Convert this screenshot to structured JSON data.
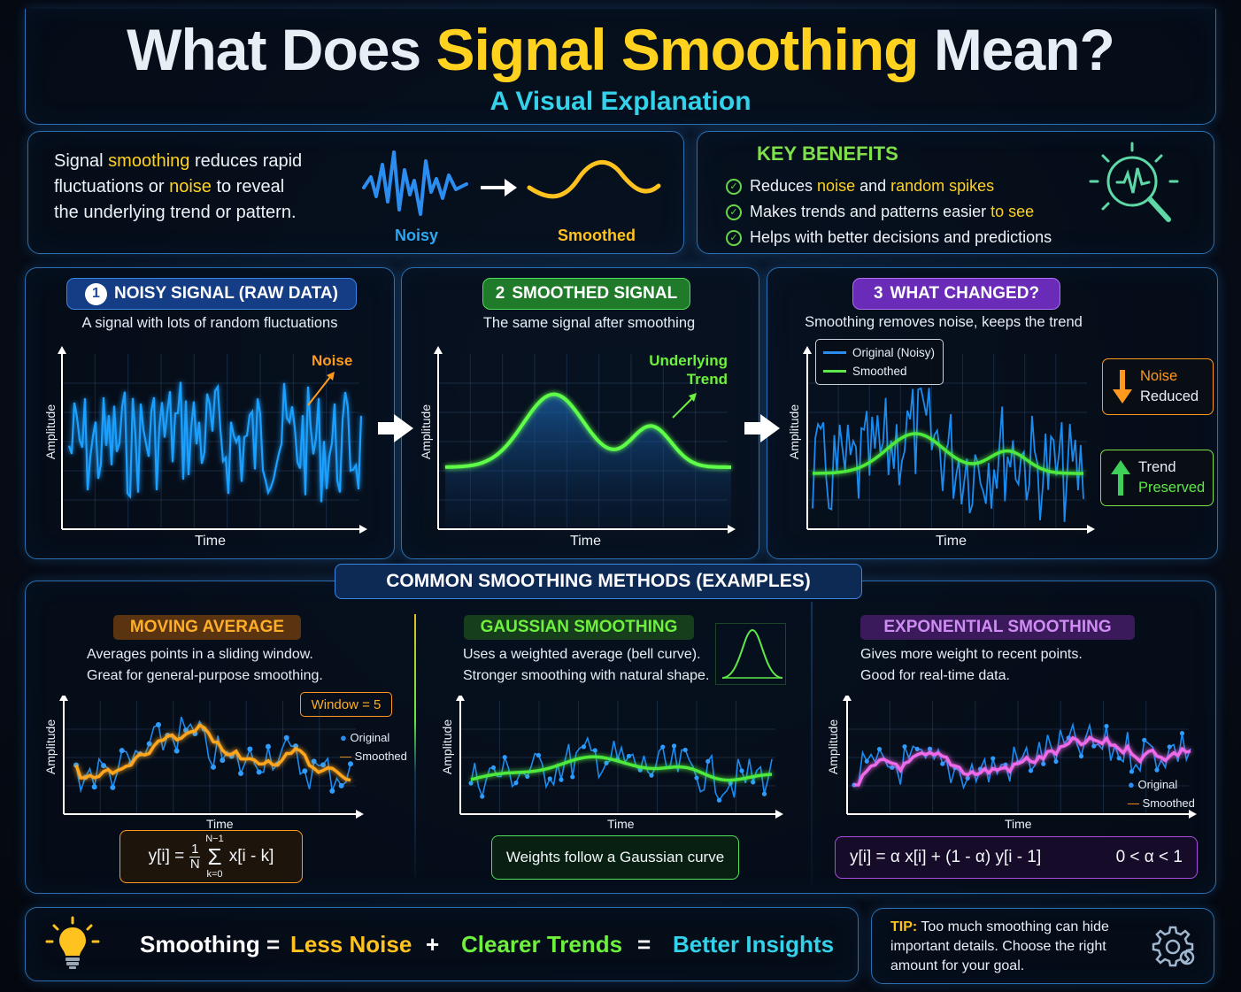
{
  "header": {
    "title_pre": "What Does ",
    "title_highlight": "Signal Smoothing",
    "title_post": " Mean?",
    "subtitle": "A Visual Explanation"
  },
  "intro": {
    "line1_pre": "Signal ",
    "line1_hl": "smoothing",
    "line1_post": " reduces rapid",
    "line2_pre": "fluctuations or ",
    "line2_hl": "noise",
    "line2_post": " to reveal",
    "line3": "the underlying trend or pattern.",
    "noisy_label": "Noisy",
    "smoothed_label": "Smoothed"
  },
  "key_benefits": {
    "title": "KEY BENEFITS",
    "items": [
      {
        "pre": "Reduces ",
        "hl": "noise",
        "mid": " and ",
        "hl2": "random spikes",
        "post": ""
      },
      {
        "pre": "Makes trends and patterns easier ",
        "hl": "to see",
        "mid": "",
        "hl2": "",
        "post": ""
      },
      {
        "pre": "Helps with better decisions and predictions",
        "hl": "",
        "mid": "",
        "hl2": "",
        "post": ""
      }
    ]
  },
  "steps": [
    {
      "num": "1",
      "title": "NOISY SIGNAL (RAW DATA)",
      "desc": "A signal with lots of random fluctuations",
      "ylabel": "Amplitude",
      "xlabel": "Time",
      "annotation": "Noise"
    },
    {
      "num": "2",
      "title": "SMOOTHED SIGNAL",
      "desc": "The same signal after smoothing",
      "ylabel": "Amplitude",
      "xlabel": "Time",
      "annotation_l1": "Underlying",
      "annotation_l2": "Trend"
    },
    {
      "num": "3",
      "title": "WHAT CHANGED?",
      "desc": "Smoothing removes noise, keeps the trend",
      "ylabel": "Amplitude",
      "xlabel": "Time",
      "legend_original": "Original (Noisy)",
      "legend_smoothed": "Smoothed"
    }
  ],
  "badges": {
    "noise_l1": "Noise",
    "noise_l2": "Reduced",
    "trend_l1": "Trend",
    "trend_l2": "Preserved"
  },
  "methods_header": "COMMON SMOOTHING METHODS (EXAMPLES)",
  "methods": [
    {
      "title": "MOVING AVERAGE",
      "desc1": "Averages points in a sliding window.",
      "desc2": "Great for general-purpose smoothing.",
      "window": "Window = 5",
      "legend_original": "Original",
      "legend_smoothed": "Smoothed",
      "ylabel": "Amplitude",
      "xlabel": "Time",
      "formula_lhs": "y[i] =",
      "formula_frac_num": "1",
      "formula_frac_den": "N",
      "formula_sum_top": "N−1",
      "formula_sum_bot": "k=0",
      "formula_rhs": "x[i - k]"
    },
    {
      "title": "GAUSSIAN SMOOTHING",
      "desc1": "Uses a weighted average (bell curve).",
      "desc2": "Stronger smoothing with natural shape.",
      "ylabel": "Amplitude",
      "xlabel": "Time",
      "formula": "Weights follow a Gaussian curve"
    },
    {
      "title": "EXPONENTIAL SMOOTHING",
      "desc1": "Gives more weight to recent points.",
      "desc2": "Good for real-time data.",
      "legend_original": "Original",
      "legend_smoothed": "Smoothed",
      "ylabel": "Amplitude",
      "xlabel": "Time",
      "formula": "y[i] = α x[i] + (1 - α) y[i - 1]",
      "formula_cond": "0 < α < 1"
    }
  ],
  "summary": {
    "lhs": "Smoothing =",
    "term1": "Less Noise",
    "plus": "+",
    "term2": "Clearer Trends",
    "eq": "=",
    "result": "Better Insights"
  },
  "tip": {
    "label": "TIP:",
    "l1": " Too much smoothing can hide",
    "l2": "important details. Choose the right",
    "l3": "amount for your goal."
  },
  "colors": {
    "yellow": "#ffd21f",
    "cyan": "#34d2ea",
    "green": "#5ee84a",
    "blue": "#2b8df0",
    "orange": "#ff9a1f",
    "purple": "#a64de0",
    "pink": "#e86ae8"
  },
  "icons": [
    "lightbulb-icon",
    "magnifier-signal-icon",
    "gear-icon",
    "check-circle-icon",
    "arrow-down-icon",
    "arrow-up-icon"
  ]
}
